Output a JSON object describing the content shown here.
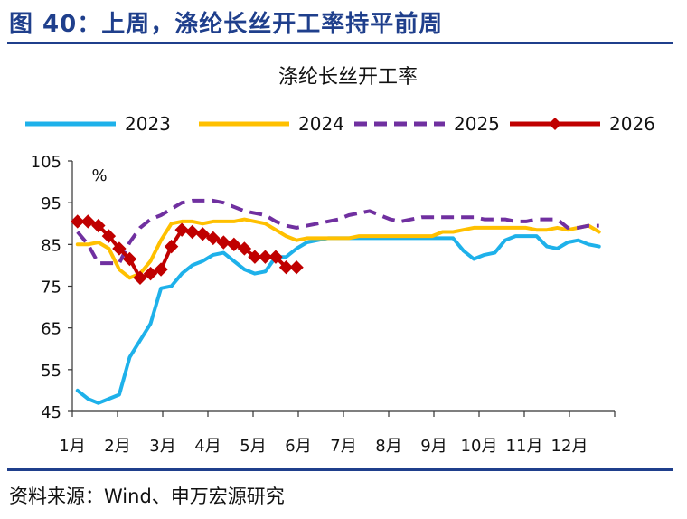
{
  "figure": {
    "title": "图 40：上周，涤纶长丝开工率持平前周",
    "source": "资料来源：Wind、申万宏源研究",
    "theme_color": "#1f3f8c"
  },
  "chart_data": {
    "type": "line",
    "title": "涤纶长丝开工率",
    "ylabel": "%",
    "xlabel": "",
    "ylim": [
      45,
      105
    ],
    "yticks": [
      45,
      55,
      65,
      75,
      85,
      95,
      105
    ],
    "xlim": [
      0,
      52
    ],
    "month_labels": [
      "1月",
      "2月",
      "3月",
      "4月",
      "5月",
      "6月",
      "7月",
      "8月",
      "9月",
      "10月",
      "11月",
      "12月"
    ],
    "legend_position": "top",
    "grid": false,
    "series": [
      {
        "name": "2023",
        "color": "#1eb1ea",
        "style": "solid",
        "x": [
          0.5,
          1.5,
          2.5,
          3.5,
          4.5,
          5.5,
          6.5,
          7.5,
          8.5,
          9.5,
          10.5,
          11.5,
          12.5,
          13.5,
          14.5,
          15.5,
          16.5,
          17.5,
          18.5,
          19.5,
          20.5,
          21.5,
          22.5,
          23.5,
          24.5,
          25.5,
          26.5,
          27.5,
          28.5,
          29.5,
          30.5,
          31.5,
          32.5,
          33.5,
          34.5,
          35.5,
          36.5,
          37.5,
          38.5,
          39.5,
          40.5,
          41.5,
          42.5,
          43.5,
          44.5,
          45.5,
          46.5,
          47.5,
          48.5,
          49.5,
          50.5
        ],
        "values": [
          50,
          48,
          47,
          48,
          49,
          58,
          62,
          66,
          74.5,
          75,
          78,
          80,
          81,
          82.5,
          83,
          81,
          79,
          78,
          78.5,
          82,
          82,
          84,
          85.5,
          86,
          86.5,
          86.5,
          86.5,
          86.5,
          86.5,
          86.5,
          86.5,
          86.5,
          86.5,
          86.5,
          86.5,
          86.5,
          86.5,
          83.5,
          81.5,
          82.5,
          83,
          86,
          87,
          87,
          87,
          84.5,
          84,
          85.5,
          86,
          85,
          84.5
        ]
      },
      {
        "name": "2024",
        "color": "#ffc000",
        "style": "solid",
        "x": [
          0.5,
          1.5,
          2.5,
          3.5,
          4.5,
          5.5,
          6.5,
          7.5,
          8.5,
          9.5,
          10.5,
          11.5,
          12.5,
          13.5,
          14.5,
          15.5,
          16.5,
          17.5,
          18.5,
          19.5,
          20.5,
          21.5,
          22.5,
          23.5,
          24.5,
          25.5,
          26.5,
          27.5,
          28.5,
          29.5,
          30.5,
          31.5,
          32.5,
          33.5,
          34.5,
          35.5,
          36.5,
          37.5,
          38.5,
          39.5,
          40.5,
          41.5,
          42.5,
          43.5,
          44.5,
          45.5,
          46.5,
          47.5,
          48.5,
          49.5,
          50.5
        ],
        "values": [
          85,
          85,
          85.5,
          84,
          79,
          77,
          78,
          81,
          86,
          90,
          90.5,
          90.5,
          90,
          90.5,
          90.5,
          90.5,
          91,
          90.5,
          90,
          88.5,
          87,
          86,
          86.5,
          86.5,
          86.5,
          86.5,
          86.5,
          87,
          87,
          87,
          87,
          87,
          87,
          87,
          87,
          88,
          88,
          88.5,
          89,
          89,
          89,
          89,
          89,
          89,
          88.5,
          88.5,
          89,
          88.5,
          89,
          89.5,
          88
        ]
      },
      {
        "name": "2025",
        "color": "#7030a0",
        "style": "dashed",
        "x": [
          0.5,
          1.5,
          2.5,
          3.5,
          4.5,
          5.5,
          6.5,
          7.5,
          8.5,
          9.5,
          10.5,
          11.5,
          12.5,
          13.5,
          14.5,
          15.5,
          16.5,
          17.5,
          18.5,
          19.5,
          20.5,
          21.5,
          22.5,
          23.5,
          24.5,
          25.5,
          26.5,
          27.5,
          28.5,
          29.5,
          30.5,
          31.5,
          32.5,
          33.5,
          34.5,
          35.5,
          36.5,
          37.5,
          38.5,
          39.5,
          40.5,
          41.5,
          42.5,
          43.5,
          44.5,
          45.5,
          46.5,
          47.5,
          48.5,
          49.5,
          50.5
        ],
        "values": [
          88,
          85,
          80.5,
          80.5,
          80.5,
          85.5,
          89,
          91,
          92,
          93.5,
          95,
          95.5,
          95.5,
          95.5,
          95,
          94,
          93,
          92.5,
          92,
          90.5,
          89.5,
          89,
          89.5,
          90,
          90.5,
          91,
          92,
          92.5,
          93,
          92,
          91,
          90.5,
          91,
          91.5,
          91.5,
          91.5,
          91.5,
          91.5,
          91.5,
          91,
          91,
          91,
          90.5,
          90.5,
          91,
          91,
          91,
          89,
          89,
          89.5,
          89.5
        ]
      },
      {
        "name": "2026",
        "color": "#c00000",
        "style": "solid-diamond",
        "x": [
          0.5,
          1.5,
          2.5,
          3.5,
          4.5,
          5.5,
          6.5,
          7.5,
          8.5,
          9.5,
          10.5,
          11.5,
          12.5,
          13.5,
          14.5,
          15.5,
          16.5,
          17.5,
          18.5,
          19.5,
          20.5,
          21.5
        ],
        "values": [
          90.5,
          90.5,
          89.5,
          87,
          84,
          81.5,
          77,
          78,
          79,
          84.5,
          88.5,
          88,
          87.5,
          86.5,
          85.5,
          85,
          84,
          82,
          82,
          82,
          79.5,
          79.5
        ]
      }
    ]
  }
}
